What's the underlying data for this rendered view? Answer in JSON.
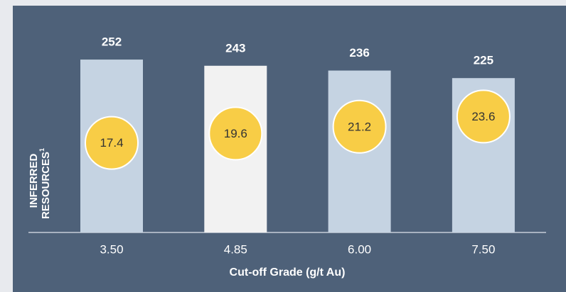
{
  "chart_data": {
    "type": "bar",
    "categories": [
      "3.50",
      "4.85",
      "6.00",
      "7.50"
    ],
    "values": [
      252,
      243,
      236,
      225
    ],
    "colors": [
      "#c5d3e2",
      "#f2f2f2",
      "#c5d3e2",
      "#c5d3e2"
    ],
    "markers": {
      "values": [
        17.4,
        19.6,
        21.2,
        23.6
      ],
      "color": "#f8cd46"
    },
    "y_label": [
      "INFERRED",
      "RESOURCES"
    ],
    "y_label_footnote": "1",
    "x_label": "Cut-off Grade (g/t Au)"
  }
}
